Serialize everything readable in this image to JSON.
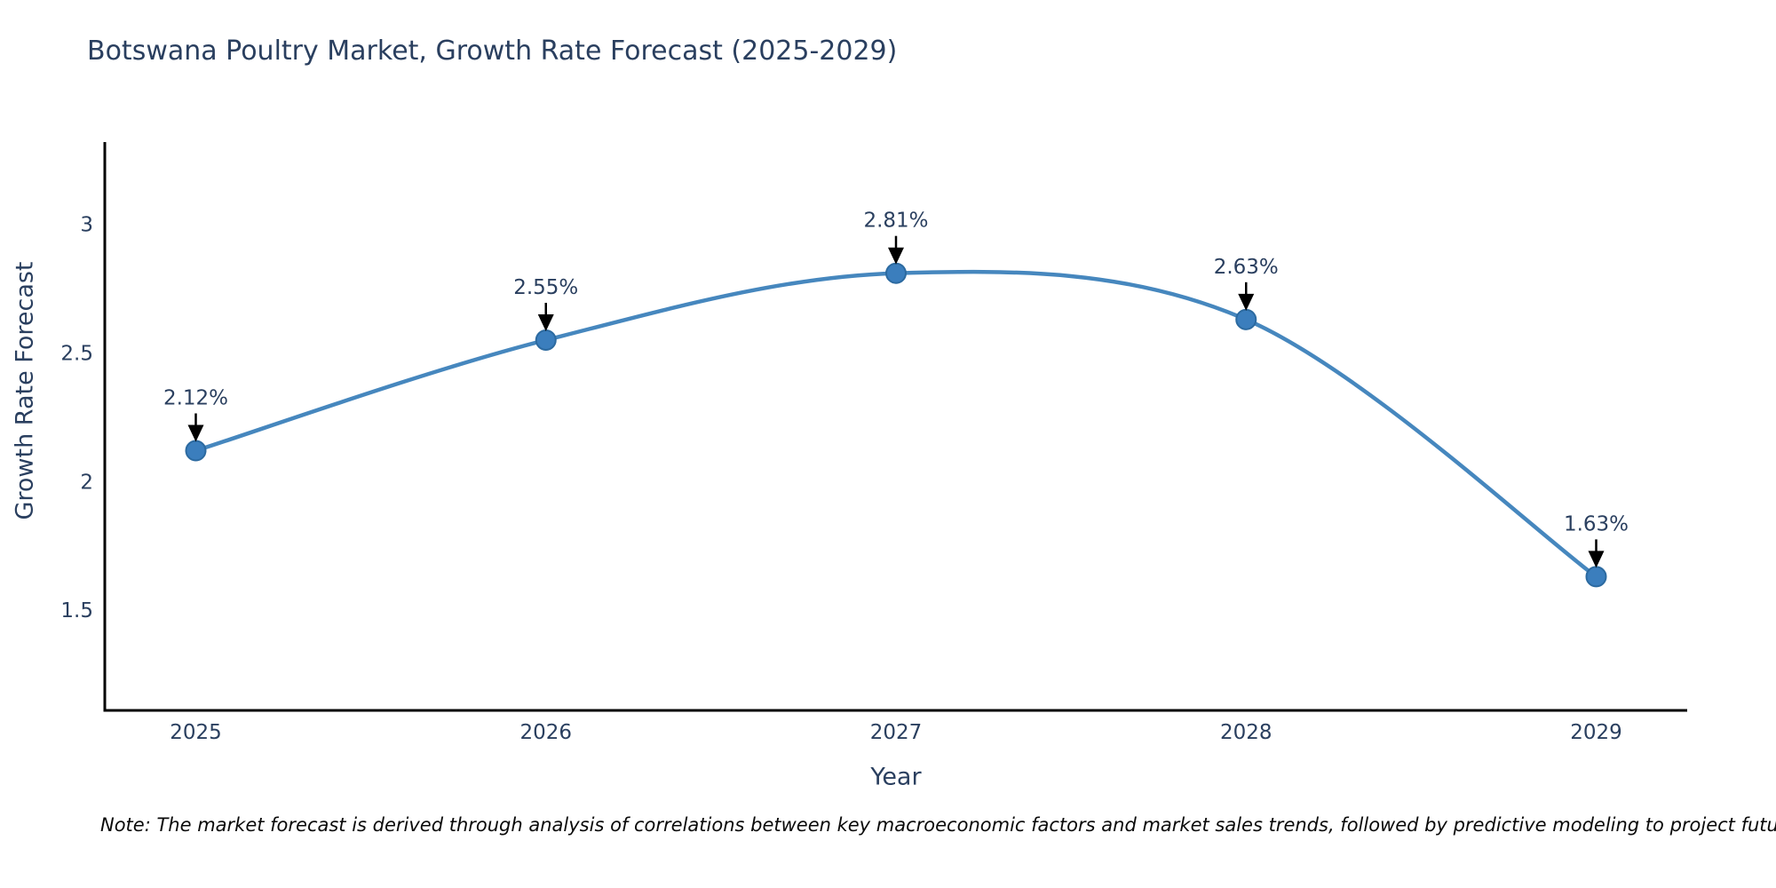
{
  "title": "Botswana Poultry Market, Growth Rate Forecast (2025-2029)",
  "note": "Note: The market forecast is derived through analysis of correlations between key macroeconomic factors and market sales trends, followed by predictive modeling to project future sales",
  "chart_data": {
    "type": "line",
    "title": "Botswana Poultry Market, Growth Rate Forecast (2025-2029)",
    "xlabel": "Year",
    "ylabel": "Growth Rate Forecast",
    "x": [
      2025,
      2026,
      2027,
      2028,
      2029
    ],
    "values": [
      2.12,
      2.55,
      2.81,
      2.63,
      1.63
    ],
    "point_labels": [
      "2.12%",
      "2.55%",
      "2.81%",
      "2.63%",
      "1.63%"
    ],
    "xticks": [
      "2025",
      "2026",
      "2027",
      "2028",
      "2029"
    ],
    "yticks": [
      "1.5",
      "2",
      "2.5",
      "3"
    ],
    "ytick_values": [
      1.5,
      2,
      2.5,
      3
    ],
    "xlim": [
      2024.74,
      2029.26
    ],
    "ylim": [
      1.11,
      3.32
    ],
    "grid": false,
    "line_shape": "spline",
    "legend": "none",
    "colors": {
      "line": "#4687be",
      "marker_fill": "#3b7ebd",
      "marker_edge": "#2c6aa0",
      "axis_line": "#000000",
      "tick_text": "#2a3f5f",
      "annotation_text": "#2a3f5f",
      "annotation_arrow": "#000000"
    }
  }
}
